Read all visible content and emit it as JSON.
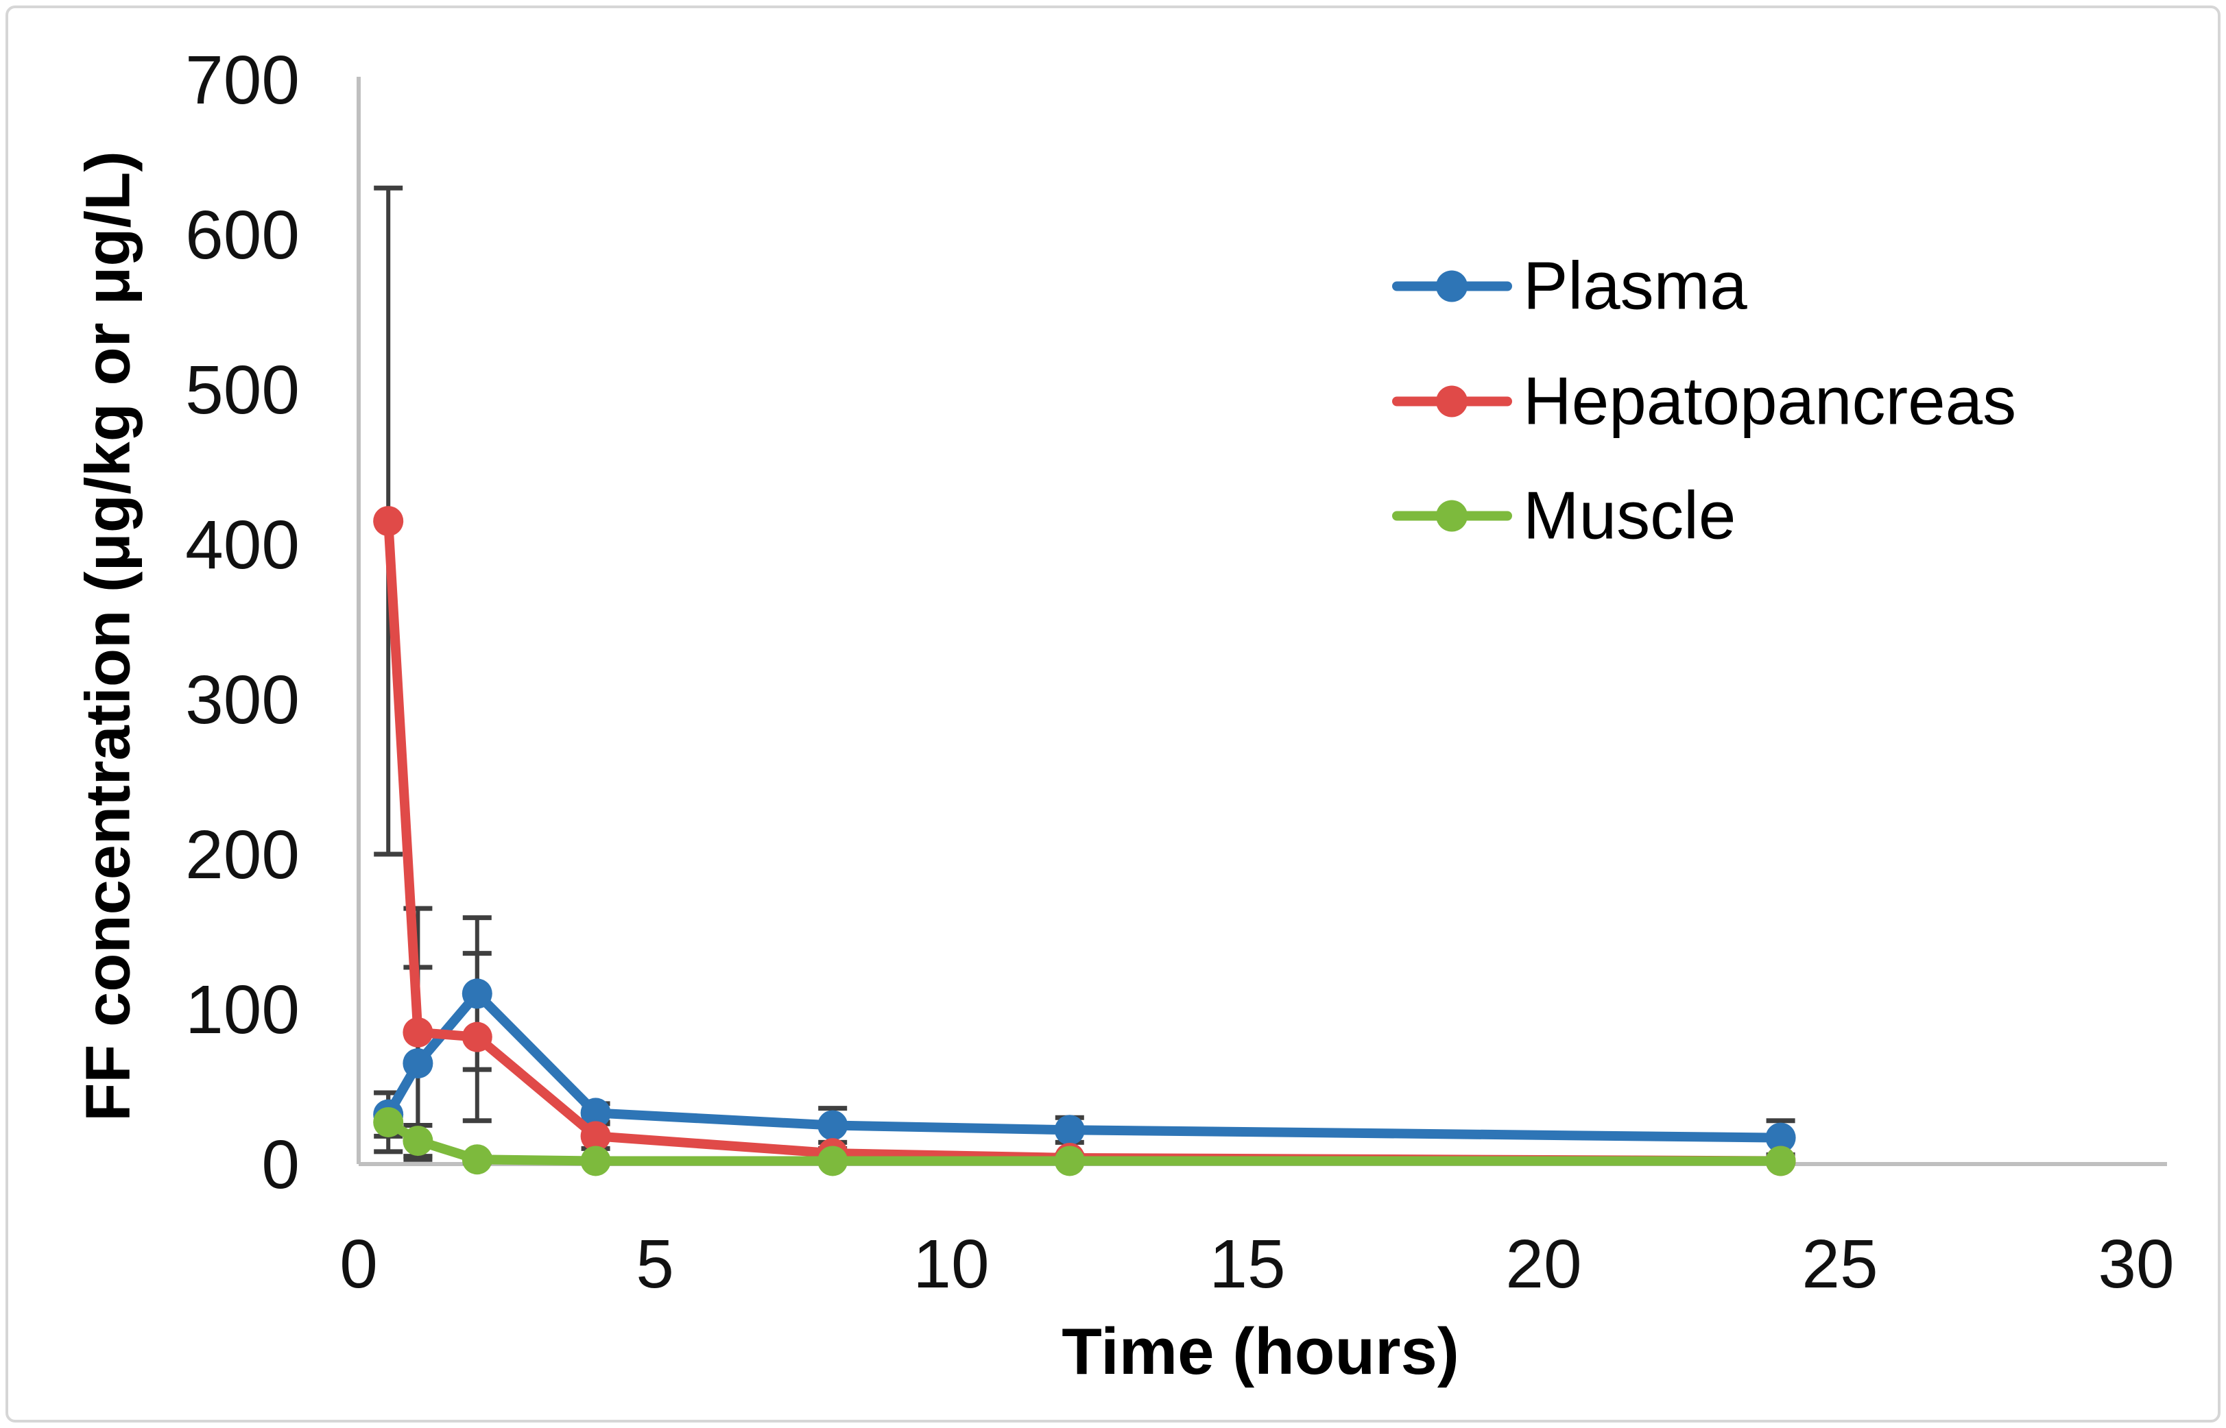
{
  "figure": {
    "background": "#FFFFFF",
    "border_color": "#D6D6D6",
    "axis_color": "#BFBFBF",
    "error_bar_color": "#3F3F3F",
    "tick_text_color": "#111111"
  },
  "chart_data": {
    "type": "line",
    "title": "",
    "xlabel": "Time (hours)",
    "ylabel": "FF concentration (μg/kg or μg/L)",
    "x": [
      0.5,
      1,
      2,
      4,
      8,
      12,
      24
    ],
    "x_ticks": [
      0,
      5,
      10,
      15,
      20,
      25,
      30
    ],
    "y_ticks": [
      0,
      100,
      200,
      300,
      400,
      500,
      600,
      700
    ],
    "xlim": [
      0,
      30
    ],
    "ylim": [
      0,
      700
    ],
    "grid": false,
    "legend_position": "upper-right-inside",
    "series": [
      {
        "name": "Plasma",
        "color": "#2E75B6",
        "values": [
          32,
          65,
          110,
          33,
          25,
          22,
          17
        ],
        "errors": [
          14,
          62,
          49,
          6,
          11,
          8,
          11
        ]
      },
      {
        "name": "Hepatopancreas",
        "color": "#E04A48",
        "values": [
          415,
          85,
          82,
          18,
          7,
          4,
          2
        ],
        "errors": [
          215,
          80,
          54,
          8,
          3,
          2,
          1
        ]
      },
      {
        "name": "Muscle",
        "color": "#7DBA3D",
        "values": [
          27,
          15,
          3,
          2,
          2,
          2,
          2
        ],
        "errors": [
          19,
          10,
          2,
          1,
          1,
          1,
          1
        ]
      }
    ]
  }
}
